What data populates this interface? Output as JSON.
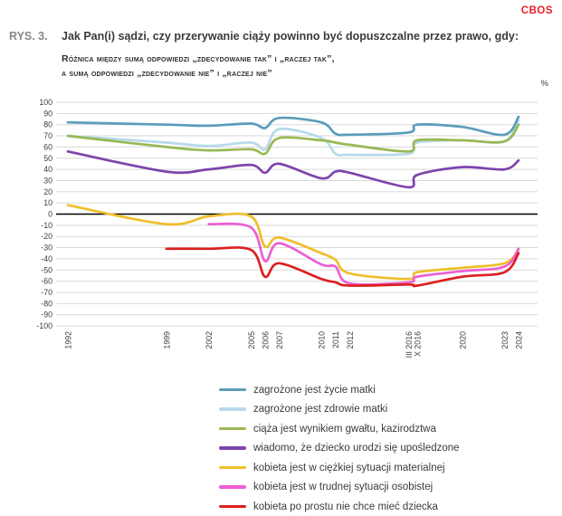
{
  "header": {
    "brand": "CBOS",
    "figure_label": "RYS. 3.",
    "title": "Jak Pan(i) sądzi, czy przerywanie ciąży powinno być dopuszczalne przez prawo, gdy:",
    "subtitle_line1": "Różnica między sumą odpowiedzi „zdecydowanie tak” i „raczej tak”,",
    "subtitle_line2": "a sumą odpowiedzi „zdecydowanie nie” i „raczej nie”"
  },
  "chart": {
    "unit_label": "%"
  },
  "chart_data": {
    "type": "line",
    "title": "",
    "xlabel": "",
    "ylabel": "%",
    "ylim": [
      -100,
      100
    ],
    "ytick_step": 10,
    "grid": true,
    "zero_baseline": true,
    "legend_position": "bottom",
    "x_tick_labels": [
      "1992",
      "1999",
      "2002",
      "2005",
      "2006",
      "2007",
      "2010",
      "2011",
      "2012",
      "III 2016",
      "X 2016",
      "2020",
      "2023",
      "2024"
    ],
    "x_values": [
      1992,
      1999,
      2002,
      2005,
      2006,
      2007,
      2010,
      2011,
      2012,
      2016.2,
      2016.8,
      2020,
      2023,
      2024
    ],
    "series": [
      {
        "id": "zycie-matki",
        "name": "zagrożone jest życie matki",
        "color": "#5b9cba",
        "values": [
          82,
          80,
          79,
          81,
          77,
          86,
          82,
          72,
          71,
          73,
          80,
          78,
          71,
          87
        ]
      },
      {
        "id": "zdrowie-matki",
        "name": "zagrożone jest zdrowie matki",
        "color": "#b7d9ea",
        "values": [
          70,
          64,
          61,
          64,
          58,
          76,
          68,
          54,
          53,
          54,
          64,
          66,
          65,
          84
        ]
      },
      {
        "id": "gwalt-kazirodztwo",
        "name": "ciąża jest wynikiem gwałtu, kazirodztwa",
        "color": "#98b954",
        "values": [
          70,
          60,
          57,
          58,
          54,
          68,
          66,
          64,
          62,
          56,
          66,
          66,
          65,
          80
        ]
      },
      {
        "id": "uposledzenie",
        "name": "wiadomo, że dziecko urodzi się upośledzone",
        "color": "#7d44ab",
        "values": [
          56,
          38,
          40,
          44,
          37,
          45,
          32,
          38,
          37,
          24,
          35,
          42,
          40,
          48
        ]
      },
      {
        "id": "sytuacja-materialna",
        "name": "kobieta jest w ciężkiej sytuacji materialnej",
        "color": "#efbf2b",
        "values": [
          8,
          -9,
          -2,
          -2,
          -29,
          -21,
          -35,
          -41,
          -53,
          -58,
          -52,
          -48,
          -44,
          -32
        ]
      },
      {
        "id": "sytuacja-osobista",
        "name": "kobieta jest w trudnej sytuacji osobistej",
        "color": "#ec5fd2",
        "values": [
          null,
          null,
          -9,
          -12,
          -42,
          -26,
          -45,
          -47,
          -62,
          -61,
          -56,
          -51,
          -47,
          -31
        ]
      },
      {
        "id": "nie-chce-dziecka",
        "name": "kobieta po prostu nie chce mieć dziecka",
        "color": "#dc1f1f",
        "values": [
          null,
          -31,
          -31,
          -32,
          -56,
          -44,
          -58,
          -61,
          -64,
          -63,
          -64,
          -56,
          -52,
          -35
        ]
      }
    ]
  }
}
